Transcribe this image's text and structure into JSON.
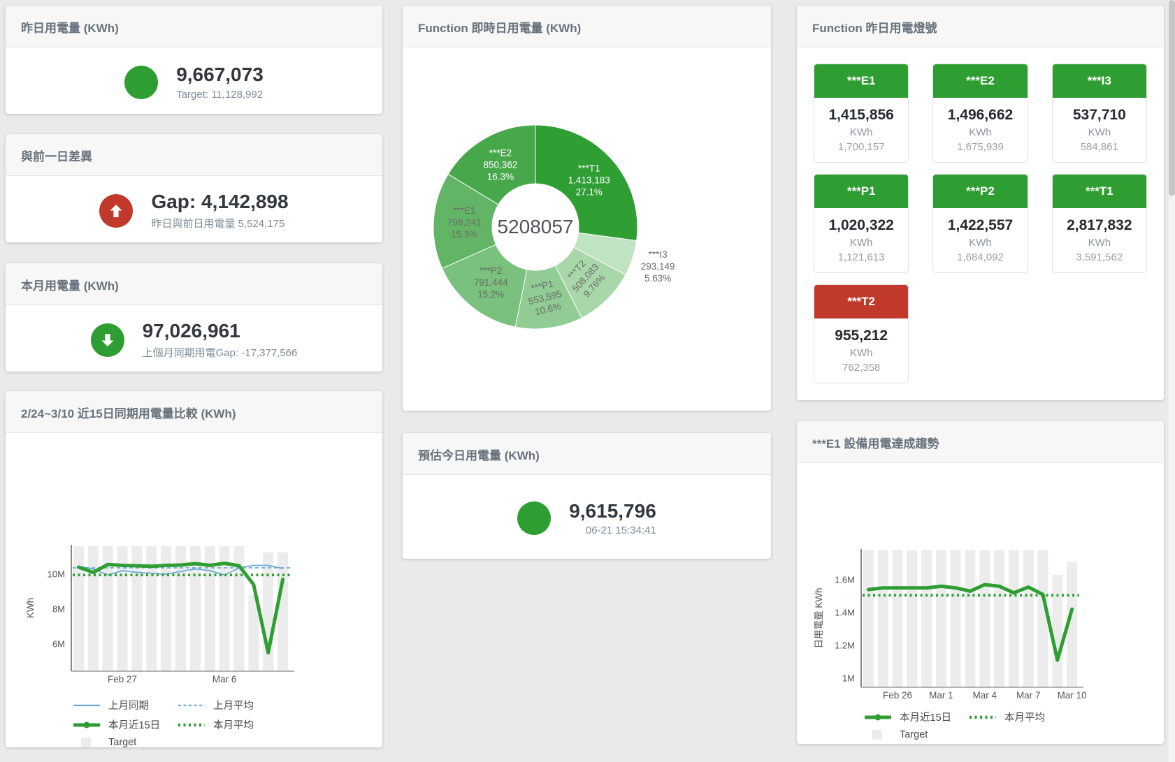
{
  "colors": {
    "green": "#2f9e32",
    "red": "#c0392b",
    "blue": "#69a8d8",
    "gray_bar": "#ececec",
    "axis_dark": "#555555",
    "axis_light": "#999999",
    "tick_text": "#555555"
  },
  "cards": {
    "yesterday": {
      "title": "昨日用電量 (KWh)",
      "value": "9,667,073",
      "subtitle": "Target: 11,128,992",
      "indicator": "green-circle"
    },
    "gap_prev_day": {
      "title": "與前一日差異",
      "value": "Gap: 4,142,898",
      "subtitle": "昨日與前日用電量 5,524,175",
      "indicator": "red-arrow-up"
    },
    "month": {
      "title": "本月用電量 (KWh)",
      "value": "97,026,961",
      "subtitle": "上個月同期用電Gap: -17,377,566",
      "indicator": "green-arrow-down"
    },
    "forecast": {
      "title": "預估今日用電量 (KWh)",
      "value": "9,615,796",
      "subtitle": "06-21 15:34:41",
      "indicator": "green-circle"
    },
    "realtime_donut": {
      "title": "Function 即時日用電量 (KWh)"
    },
    "lights": {
      "title": "Function 昨日用電燈號",
      "tiles": [
        {
          "name": "***E1",
          "value": "1,415,856",
          "unit": "KWh",
          "target": "1,700,157",
          "status": "green"
        },
        {
          "name": "***E2",
          "value": "1,496,662",
          "unit": "KWh",
          "target": "1,675,939",
          "status": "green"
        },
        {
          "name": "***I3",
          "value": "537,710",
          "unit": "KWh",
          "target": "584,861",
          "status": "green"
        },
        {
          "name": "***P1",
          "value": "1,020,322",
          "unit": "KWh",
          "target": "1,121,613",
          "status": "green"
        },
        {
          "name": "***P2",
          "value": "1,422,557",
          "unit": "KWh",
          "target": "1,684,092",
          "status": "green"
        },
        {
          "name": "***T1",
          "value": "2,817,832",
          "unit": "KWh",
          "target": "3,591,562",
          "status": "green"
        },
        {
          "name": "***T2",
          "value": "955,212",
          "unit": "KWh",
          "target": "762,358",
          "status": "red"
        }
      ]
    },
    "compare15": {
      "title": "2/24~3/10 近15日同期用電量比較 (KWh)"
    },
    "e1_trend": {
      "title": "***E1 設備用電達成趨勢"
    }
  },
  "chart_data": [
    {
      "id": "donut",
      "type": "pie",
      "title": "Function 即時日用電量 (KWh)",
      "center_total": "5208057",
      "slices": [
        {
          "name": "***T1",
          "value": 1413183,
          "value_label": "1,413,183",
          "pct": "27.1%",
          "color": "#2f9e33",
          "label_color": "#ffffff",
          "rotate": 0,
          "outside": false
        },
        {
          "name": "***I3",
          "value": 293149,
          "value_label": "293,149",
          "pct": "5.63%",
          "color": "#c0e3c1",
          "label_color": "#6b6b6b",
          "rotate": 0,
          "outside": true
        },
        {
          "name": "***T2",
          "value": 508083,
          "value_label": "508,083",
          "pct": "9.76%",
          "color": "#a8d8aa",
          "label_color": "#6b6b6b",
          "rotate": -48,
          "outside": false
        },
        {
          "name": "***P1",
          "value": 553595,
          "value_label": "553,595",
          "pct": "10.6%",
          "color": "#90cc93",
          "label_color": "#6b6b6b",
          "rotate": -14,
          "outside": false
        },
        {
          "name": "***P2",
          "value": 791444,
          "value_label": "791,444",
          "pct": "15.2%",
          "color": "#79c17c",
          "label_color": "#6b6b6b",
          "rotate": 0,
          "outside": false
        },
        {
          "name": "***E1",
          "value": 798241,
          "value_label": "798,241",
          "pct": "15.3%",
          "color": "#63b566",
          "label_color": "#6b6b6b",
          "rotate": 0,
          "outside": false
        },
        {
          "name": "***E2",
          "value": 850362,
          "value_label": "850,362",
          "pct": "16.3%",
          "color": "#46a84a",
          "label_color": "#ffffff",
          "rotate": 0,
          "outside": false
        }
      ]
    },
    {
      "id": "compare15",
      "type": "line+bar",
      "title": "2/24~3/10 近15日同期用電量比較 (KWh)",
      "ylabel": "KWh",
      "unit": "M KWh",
      "categories": [
        "Feb 24",
        "Feb 25",
        "Feb 26",
        "Feb 27",
        "Feb 28",
        "Mar 1",
        "Mar 2",
        "Mar 3",
        "Mar 4",
        "Mar 5",
        "Mar 6",
        "Mar 7",
        "Mar 8",
        "Mar 9",
        "Mar 10"
      ],
      "xticks": [
        {
          "index": 3,
          "label": "Feb 27"
        },
        {
          "index": 10,
          "label": "Mar 6"
        }
      ],
      "ylim_m": [
        4.44,
        11.68
      ],
      "yticks": [
        {
          "v": 6,
          "label": "6M"
        },
        {
          "v": 8,
          "label": "8M"
        },
        {
          "v": 10,
          "label": "10M"
        }
      ],
      "target_bars_m": [
        11.6,
        11.6,
        11.6,
        11.6,
        11.6,
        11.6,
        11.6,
        11.6,
        11.6,
        11.6,
        11.6,
        11.6,
        8.8,
        11.25,
        11.25
      ],
      "series": [
        {
          "name": "上月同期",
          "swatch": "blue-line",
          "type": "line",
          "color": "blue",
          "width": 1.7,
          "dash": "",
          "values_m": [
            10.45,
            10.3,
            9.95,
            10.2,
            10.1,
            10.05,
            10.0,
            10.15,
            10.3,
            10.2,
            9.95,
            10.35,
            10.5,
            10.5,
            10.32
          ]
        },
        {
          "name": "上月平均",
          "swatch": "blue-dash",
          "type": "avg",
          "color": "blue",
          "width": 1.7,
          "dash": "5 4",
          "value_m": 10.36
        },
        {
          "name": "本月近15日",
          "swatch": "green-thick",
          "type": "line",
          "color": "green",
          "width": 5,
          "dash": "",
          "values_m": [
            10.4,
            10.1,
            10.55,
            10.5,
            10.48,
            10.45,
            10.5,
            10.52,
            10.6,
            10.5,
            10.62,
            10.48,
            9.4,
            5.5,
            9.7
          ]
        },
        {
          "name": "本月平均",
          "swatch": "green-dots",
          "type": "avg",
          "color": "green",
          "width": 3.8,
          "dash": "3 4.5",
          "value_m": 9.95
        }
      ],
      "legend_rows": [
        [
          {
            "label": "上月同期",
            "swatch": "blue-line"
          },
          {
            "label": "上月平均",
            "swatch": "blue-dash"
          }
        ],
        [
          {
            "label": "本月近15日",
            "swatch": "green-thick"
          },
          {
            "label": "本月平均",
            "swatch": "green-dots"
          }
        ],
        [
          {
            "label": "Target",
            "swatch": "gray-square"
          }
        ]
      ]
    },
    {
      "id": "e1trend",
      "type": "line+bar",
      "title": "***E1 設備用電達成趨勢",
      "ylabel": "日用電量 KWh",
      "unit": "M KWh",
      "categories": [
        "Feb 24",
        "Feb 25",
        "Feb 26",
        "Feb 27",
        "Feb 28",
        "Mar 1",
        "Mar 2",
        "Mar 3",
        "Mar 4",
        "Mar 5",
        "Mar 6",
        "Mar 7",
        "Mar 8",
        "Mar 9",
        "Mar 10"
      ],
      "xticks": [
        {
          "index": 2,
          "label": "Feb 26"
        },
        {
          "index": 5,
          "label": "Mar 1"
        },
        {
          "index": 8,
          "label": "Mar 4"
        },
        {
          "index": 11,
          "label": "Mar 7"
        },
        {
          "index": 14,
          "label": "Mar 10"
        }
      ],
      "ylim_m": [
        0.945,
        1.787
      ],
      "yticks": [
        {
          "v": 1,
          "label": "1M"
        },
        {
          "v": 1.2,
          "label": "1.2M"
        },
        {
          "v": 1.4,
          "label": "1.4M"
        },
        {
          "v": 1.6,
          "label": "1.6M"
        }
      ],
      "target_bars_m": [
        1.78,
        1.78,
        1.78,
        1.78,
        1.78,
        1.78,
        1.78,
        1.78,
        1.78,
        1.78,
        1.78,
        1.78,
        1.78,
        1.63,
        1.71
      ],
      "series": [
        {
          "name": "本月近15日",
          "swatch": "green-thick",
          "type": "line",
          "color": "green",
          "width": 5,
          "dash": "",
          "values_m": [
            1.54,
            1.55,
            1.55,
            1.55,
            1.55,
            1.56,
            1.55,
            1.53,
            1.57,
            1.56,
            1.52,
            1.555,
            1.51,
            1.11,
            1.42
          ]
        },
        {
          "name": "本月平均",
          "swatch": "green-dots",
          "type": "avg",
          "color": "green",
          "width": 3.8,
          "dash": "3 4.5",
          "value_m": 1.505
        }
      ],
      "legend_rows": [
        [
          {
            "label": "本月近15日",
            "swatch": "green-thick"
          },
          {
            "label": "本月平均",
            "swatch": "green-dots"
          }
        ],
        [
          {
            "label": "Target",
            "swatch": "gray-square"
          }
        ]
      ]
    }
  ]
}
